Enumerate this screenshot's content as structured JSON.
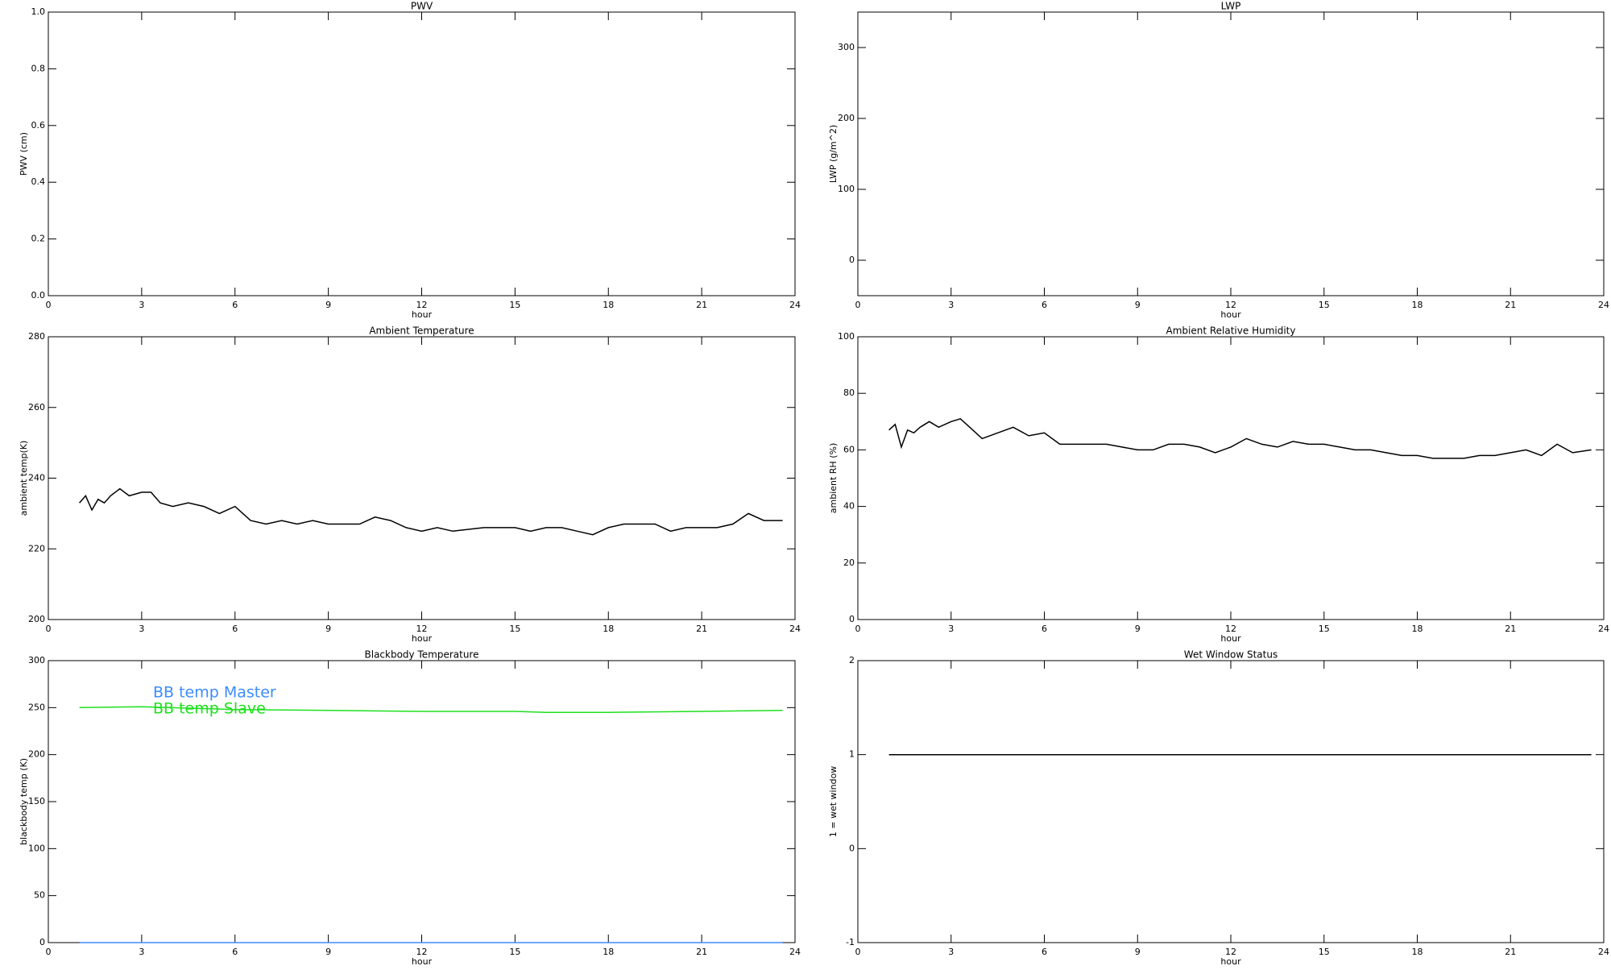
{
  "chart_data": [
    {
      "type": "line",
      "title": "PWV",
      "x_label": "hour",
      "y_label": "PWV (cm)",
      "xlim": [
        0,
        24
      ],
      "xticks": [
        0,
        3,
        6,
        9,
        12,
        15,
        18,
        21,
        24
      ],
      "ylim": [
        0,
        1
      ],
      "yticks": [
        {
          "value": 0,
          "label": "0.0"
        },
        0.2,
        0.4,
        0.6,
        0.8,
        {
          "value": 1,
          "label": "1.0"
        }
      ],
      "series": []
    },
    {
      "type": "line",
      "title": "LWP",
      "x_label": "hour",
      "y_label": "LWP (g/m^2)",
      "xlim": [
        0,
        24
      ],
      "xticks": [
        0,
        3,
        6,
        9,
        12,
        15,
        18,
        21,
        24
      ],
      "ylim": [
        -50,
        350
      ],
      "yticks": [
        0,
        100,
        200,
        300
      ],
      "series": []
    },
    {
      "type": "line",
      "title": "Ambient Temperature",
      "x_label": "hour",
      "y_label": "ambient temp(K)",
      "xlim": [
        0,
        24
      ],
      "xticks": [
        0,
        3,
        6,
        9,
        12,
        15,
        18,
        21,
        24
      ],
      "ylim": [
        200,
        280
      ],
      "yticks": [
        200,
        220,
        240,
        260,
        280
      ],
      "series": [
        {
          "color": "#000000",
          "x": [
            1.0,
            1.2,
            1.4,
            1.6,
            1.8,
            2.0,
            2.3,
            2.6,
            3.0,
            3.3,
            3.6,
            4.0,
            4.5,
            5.0,
            5.5,
            6.0,
            6.5,
            7.0,
            7.5,
            8.0,
            8.5,
            9.0,
            9.5,
            10.0,
            10.5,
            11.0,
            11.5,
            12.0,
            12.5,
            13.0,
            14.0,
            15.0,
            15.5,
            16.0,
            16.5,
            17.0,
            17.5,
            18.0,
            18.5,
            19.0,
            19.5,
            20.0,
            20.5,
            21.0,
            21.5,
            22.0,
            22.5,
            23.0,
            23.6
          ],
          "values": [
            233,
            235,
            231,
            234,
            233,
            235,
            237,
            235,
            236,
            236,
            233,
            232,
            233,
            232,
            230,
            232,
            228,
            227,
            228,
            227,
            228,
            227,
            227,
            227,
            229,
            228,
            226,
            225,
            226,
            225,
            226,
            226,
            225,
            226,
            226,
            225,
            224,
            226,
            227,
            227,
            227,
            225,
            226,
            226,
            226,
            227,
            230,
            228,
            228
          ]
        }
      ]
    },
    {
      "type": "line",
      "title": "Ambient Relative Humidity",
      "x_label": "hour",
      "y_label": "ambient RH (%)",
      "xlim": [
        0,
        24
      ],
      "xticks": [
        0,
        3,
        6,
        9,
        12,
        15,
        18,
        21,
        24
      ],
      "ylim": [
        0,
        100
      ],
      "yticks": [
        0,
        20,
        40,
        60,
        80,
        100
      ],
      "series": [
        {
          "color": "#000000",
          "x": [
            1.0,
            1.2,
            1.4,
            1.6,
            1.8,
            2.0,
            2.3,
            2.6,
            3.0,
            3.3,
            3.6,
            4.0,
            4.5,
            5.0,
            5.5,
            6.0,
            6.5,
            7.0,
            7.5,
            8.0,
            8.5,
            9.0,
            9.5,
            10.0,
            10.5,
            11.0,
            11.5,
            12.0,
            12.5,
            13.0,
            13.5,
            14.0,
            14.5,
            15.0,
            15.5,
            16.0,
            16.5,
            17.0,
            17.5,
            18.0,
            18.5,
            19.0,
            19.5,
            20.0,
            20.5,
            21.0,
            21.5,
            22.0,
            22.5,
            23.0,
            23.6
          ],
          "values": [
            67,
            69,
            61,
            67,
            66,
            68,
            70,
            68,
            70,
            71,
            68,
            64,
            66,
            68,
            65,
            66,
            62,
            62,
            62,
            62,
            61,
            60,
            60,
            62,
            62,
            61,
            59,
            61,
            64,
            62,
            61,
            63,
            62,
            62,
            61,
            60,
            60,
            59,
            58,
            58,
            57,
            57,
            57,
            58,
            58,
            59,
            60,
            58,
            62,
            59,
            60
          ]
        }
      ]
    },
    {
      "type": "line",
      "title": "Blackbody Temperature",
      "x_label": "hour",
      "y_label": "blackbody temp (K)",
      "xlim": [
        0,
        24
      ],
      "xticks": [
        0,
        3,
        6,
        9,
        12,
        15,
        18,
        21,
        24
      ],
      "ylim": [
        0,
        300
      ],
      "yticks": [
        0,
        50,
        100,
        150,
        200,
        250,
        300
      ],
      "legend": "upper left",
      "series": [
        {
          "name": "BB temp Master",
          "color": "#3c8cff",
          "x": [
            1,
            3,
            6,
            9,
            12,
            15,
            16,
            18,
            21,
            23.6
          ],
          "values": [
            0,
            0,
            0,
            0,
            0,
            0,
            0,
            0,
            0,
            0
          ]
        },
        {
          "name": "BB temp Slave",
          "color": "#1ee01e",
          "x": [
            1,
            3,
            6,
            9,
            12,
            15,
            16,
            18,
            21,
            23.6
          ],
          "values": [
            250,
            251,
            248,
            247,
            246,
            246,
            245,
            245,
            246,
            247
          ]
        }
      ]
    },
    {
      "type": "line",
      "title": "Wet Window Status",
      "x_label": "hour",
      "y_label": "1 = wet window",
      "xlim": [
        0,
        24
      ],
      "xticks": [
        0,
        3,
        6,
        9,
        12,
        15,
        18,
        21,
        24
      ],
      "ylim": [
        -1,
        2
      ],
      "yticks": [
        -1,
        0,
        1,
        2
      ],
      "series": [
        {
          "color": "#000000",
          "x": [
            1,
            23.6
          ],
          "values": [
            1,
            1
          ]
        }
      ]
    }
  ]
}
